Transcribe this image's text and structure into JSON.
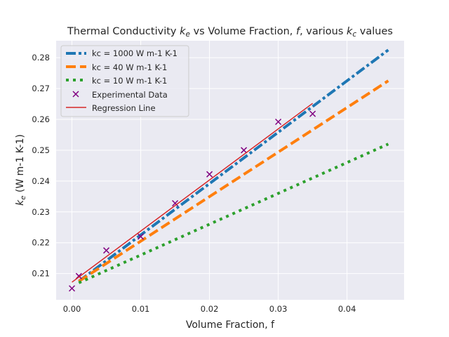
{
  "chart_data": {
    "type": "line",
    "title": {
      "prefix": "Thermal Conductivity ",
      "ke_base": "k",
      "ke_sub": "e",
      "middle": " vs Volume Fraction, ",
      "f_sym": "f",
      "sep": ", various ",
      "kc_base": "k",
      "kc_sub": "c",
      "suffix": " values"
    },
    "xlabel": "Volume Fraction, f",
    "ylabel": {
      "base": "k",
      "sub": "e",
      "rest": " (W m-1 K-1)"
    },
    "xlim": [
      -0.0023,
      0.0483
    ],
    "ylim": [
      0.2015,
      0.2855
    ],
    "xticks": [
      0.0,
      0.01,
      0.02,
      0.03,
      0.04
    ],
    "xtick_labels": [
      "0.00",
      "0.01",
      "0.02",
      "0.03",
      "0.04"
    ],
    "yticks": [
      0.21,
      0.22,
      0.23,
      0.24,
      0.25,
      0.26,
      0.27,
      0.28
    ],
    "ytick_labels": [
      "0.21",
      "0.22",
      "0.23",
      "0.24",
      "0.25",
      "0.26",
      "0.27",
      "0.28"
    ],
    "grid": true,
    "legend_position": "top-left",
    "series": [
      {
        "name": "kc = 1000 W m-1 K-1",
        "style": "dashdot",
        "color": "#1f77b4",
        "x": [
          0.001,
          0.046
        ],
        "y": [
          0.2075,
          0.2825
        ]
      },
      {
        "name": "kc = 40 W m-1 K-1",
        "style": "dashed",
        "color": "#ff7f0e",
        "x": [
          0.001,
          0.046
        ],
        "y": [
          0.2075,
          0.2725
        ]
      },
      {
        "name": "kc = 10 W m-1 K-1",
        "style": "dotted",
        "color": "#2ca02c",
        "x": [
          0.001,
          0.046
        ],
        "y": [
          0.207,
          0.252
        ]
      },
      {
        "name": "Experimental Data",
        "style": "marker-x",
        "color": "#800080",
        "x": [
          0.0,
          0.001,
          0.005,
          0.01,
          0.015,
          0.02,
          0.025,
          0.03,
          0.035
        ],
        "y": [
          0.2052,
          0.2092,
          0.2175,
          0.222,
          0.2328,
          0.2422,
          0.25,
          0.2592,
          0.2618
        ]
      },
      {
        "name": "Regression Line",
        "style": "solid",
        "color": "#d62728",
        "x": [
          0.0,
          0.035
        ],
        "y": [
          0.2072,
          0.2652
        ]
      }
    ]
  }
}
